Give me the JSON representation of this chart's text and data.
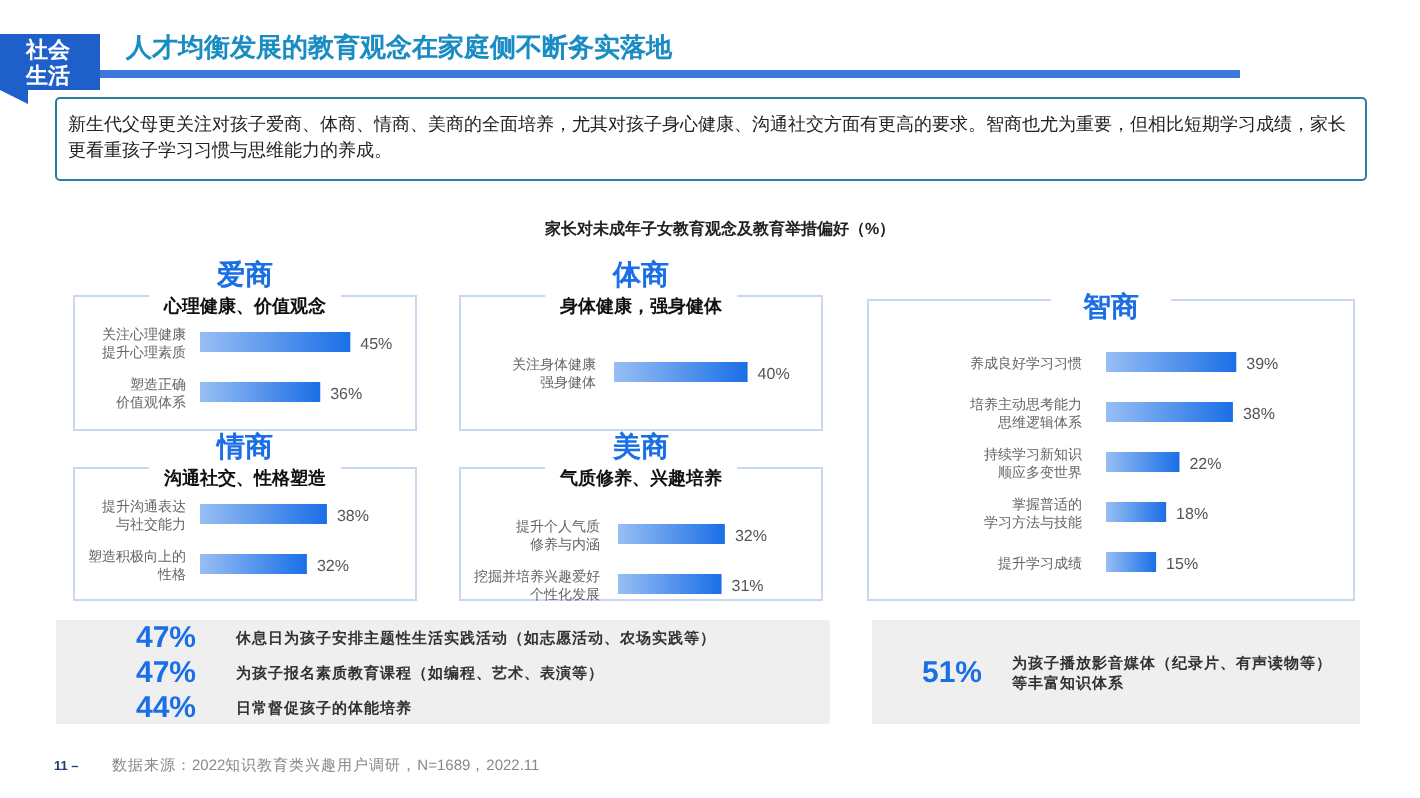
{
  "chart_data": [
    {
      "type": "other",
      "title": "人才均衡发展的教育观念在家庭侧不断务实落地",
      "subtitle": "家长对未成年子女教育观念及教育举措偏好（%）",
      "annotations": [
        "社会生活",
        "新生代父母更关注对孩子爱商、体商、情商、美商的全面培养，尤其对孩子身心健康、沟通社交方面有更高的要求。智商也尤为重要，但相比短期学习成绩，家长更看重孩子学习习惯与思维能力的养成。",
        "11 –",
        "数据来源：2022知识教育类兴趣用户调研，N=1689，2022.11"
      ]
    },
    {
      "type": "bar",
      "orientation": "horizontal",
      "title": "爱商",
      "subtitle": "心理健康、价值观念",
      "categories": [
        "关注心理健康提升心理素质",
        "塑造正确价值观体系"
      ],
      "values": [
        45,
        36
      ],
      "value_labels": [
        "45%",
        "36%"
      ],
      "color": "#1a6fe6"
    },
    {
      "type": "bar",
      "orientation": "horizontal",
      "title": "体商",
      "subtitle": "身体健康，强身健体",
      "categories": [
        "关注身体健康强身健体"
      ],
      "values": [
        40
      ],
      "value_labels": [
        "40%"
      ],
      "color": "#1a6fe6"
    },
    {
      "type": "bar",
      "orientation": "horizontal",
      "title": "情商",
      "subtitle": "沟通社交、性格塑造",
      "categories": [
        "提升沟通表达与社交能力",
        "塑造积极向上的性格"
      ],
      "values": [
        38,
        32
      ],
      "value_labels": [
        "38%",
        "32%"
      ],
      "color": "#1a6fe6"
    },
    {
      "type": "bar",
      "orientation": "horizontal",
      "title": "美商",
      "subtitle": "气质修养、兴趣培养",
      "categories": [
        "提升个人气质修养与内涵",
        "挖掘并培养兴趣爱好个性化发展"
      ],
      "values": [
        32,
        31
      ],
      "value_labels": [
        "32%",
        "31%"
      ],
      "color": "#1a6fe6"
    },
    {
      "type": "bar",
      "orientation": "horizontal",
      "title": "智商",
      "categories": [
        "养成良好学习习惯",
        "培养主动思考能力思维逻辑体系",
        "持续学习新知识顺应多变世界",
        "掌握普适的学习方法与技能",
        "提升学习成绩"
      ],
      "values": [
        39,
        38,
        22,
        18,
        15
      ],
      "value_labels": [
        "39%",
        "38%",
        "22%",
        "18%",
        "15%"
      ],
      "color": "#1a6fe6"
    },
    {
      "type": "other",
      "categories": [
        "休息日为孩子安排主题性生活实践活动（如志愿活动、农场实践等）",
        "为孩子报名素质教育课程（如编程、艺术、表演等）",
        "日常督促孩子的体能培养"
      ],
      "values": [
        47,
        47,
        44
      ],
      "value_labels": [
        "47%",
        "47%",
        "44%"
      ]
    },
    {
      "type": "other",
      "categories": [
        "为孩子播放影音媒体（纪录片、有声读物等）等丰富知识体系"
      ],
      "values": [
        51
      ],
      "value_labels": [
        "51%"
      ]
    }
  ]
}
